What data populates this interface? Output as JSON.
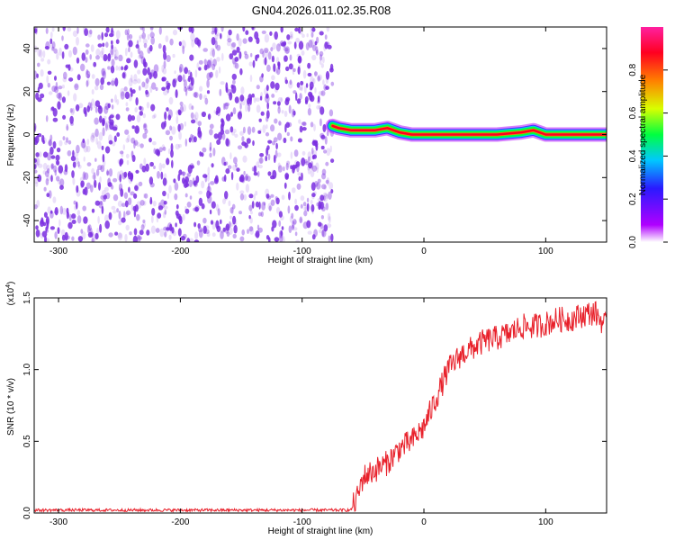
{
  "title": "GN04.2026.011.02.35.R08",
  "colors": {
    "noise": "#7a2ee0",
    "snr_line": "#e8202a",
    "colorbar_stops": [
      "#ffffff",
      "#b000ff",
      "#2a1aff",
      "#00c8ff",
      "#00ff40",
      "#d8ff00",
      "#ff8000",
      "#ff0020",
      "#ff20a0"
    ]
  },
  "chart_data": [
    {
      "type": "heatmap",
      "xlabel": "Height of straight line (km)",
      "ylabel": "Frequency (Hz)",
      "xlim": [
        -320,
        150
      ],
      "ylim": [
        -50,
        50
      ],
      "xticks": [
        -300,
        -200,
        -100,
        0,
        100
      ],
      "yticks": [
        -40,
        -20,
        0,
        20,
        40
      ],
      "noise_region_x": [
        -320,
        -75
      ],
      "signal_track": {
        "x": [
          -75,
          -70,
          -60,
          -50,
          -40,
          -30,
          -20,
          -10,
          0,
          20,
          40,
          60,
          80,
          90,
          100,
          120,
          150
        ],
        "y": [
          4,
          3,
          2,
          2,
          2,
          3,
          1,
          0,
          0,
          0,
          0,
          0,
          1,
          2,
          0,
          0,
          0
        ]
      },
      "colorbar": {
        "label": "Normalized spectral amplitude",
        "range": [
          0,
          1
        ],
        "ticks": [
          "0.0",
          "0.2",
          "0.4",
          "0.6",
          "0.8"
        ]
      }
    },
    {
      "type": "line",
      "xlabel": "Height of straight line (km)",
      "ylabel": "SNR (10 * v/v)",
      "scale_label": "(x10^4)",
      "xlim": [
        -320,
        150
      ],
      "ylim": [
        0,
        1.5
      ],
      "xticks": [
        -300,
        -200,
        -100,
        0,
        100
      ],
      "yticks": [
        "0.0",
        "0.5",
        "1.0",
        "1.5"
      ],
      "series": [
        {
          "x": [
            -320,
            -300,
            -250,
            -200,
            -150,
            -100,
            -70,
            -60,
            -55,
            -50,
            -40,
            -30,
            -20,
            -10,
            0,
            10,
            20,
            30,
            40,
            50,
            60,
            70,
            80,
            90,
            100,
            110,
            120,
            130,
            140,
            150
          ],
          "y": [
            0.02,
            0.02,
            0.02,
            0.02,
            0.02,
            0.02,
            0.02,
            0.02,
            0.1,
            0.25,
            0.3,
            0.35,
            0.45,
            0.5,
            0.6,
            0.8,
            1.0,
            1.1,
            1.15,
            1.2,
            1.22,
            1.25,
            1.3,
            1.3,
            1.32,
            1.35,
            1.35,
            1.38,
            1.4,
            1.3
          ]
        }
      ]
    }
  ]
}
